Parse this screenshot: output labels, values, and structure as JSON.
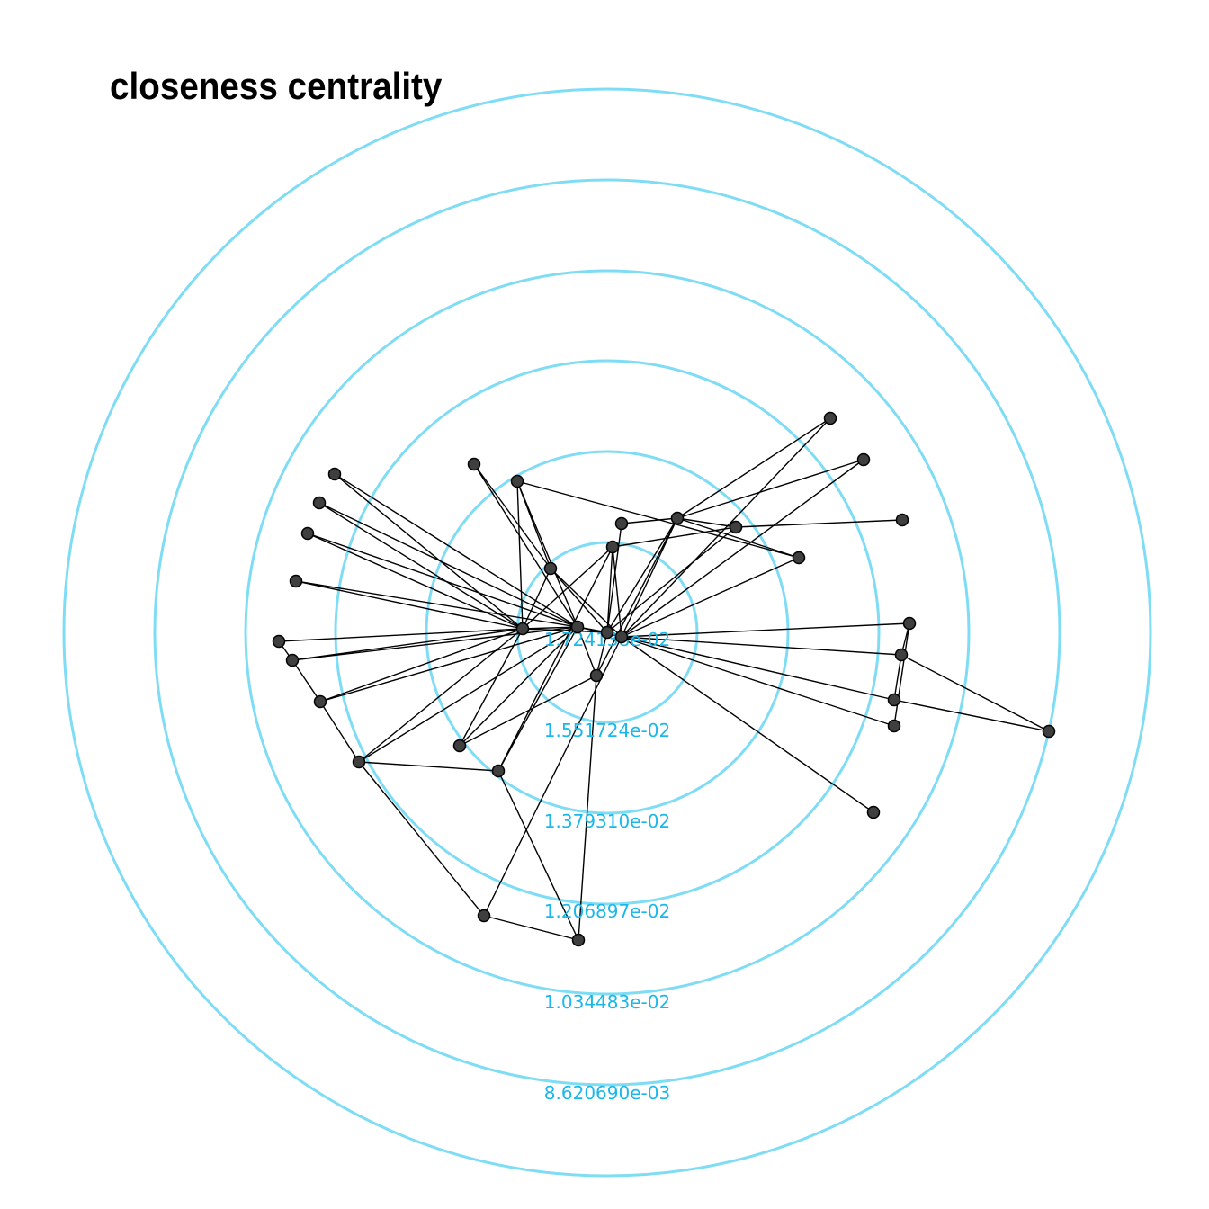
{
  "title": "closeness centrality",
  "colors": {
    "ring": "#7fdcf5",
    "ring_label": "#1ab8ea",
    "node_fill": "#3f3f3f",
    "edge": "#000000"
  },
  "ring_labels": [
    "1.724138e-02",
    "1.551724e-02",
    "1.379310e-02",
    "1.206897e-02",
    "1.034483e-02",
    "8.620690e-03"
  ]
}
